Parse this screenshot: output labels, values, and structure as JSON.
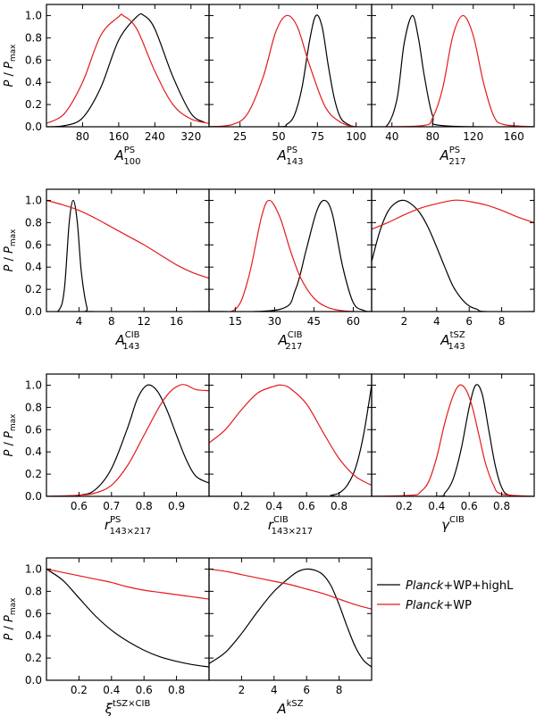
{
  "ylabel": "P / P_max",
  "yticks": [
    "0.0",
    "0.2",
    "0.4",
    "0.6",
    "0.8",
    "1.0"
  ],
  "legend": [
    {
      "name": "Planck+WP+highL",
      "italic": "Planck",
      "rest": "+WP+highL",
      "color": "#000000"
    },
    {
      "name": "Planck+WP",
      "italic": "Planck",
      "rest": "+WP",
      "color": "#e41a1c"
    }
  ],
  "chart_data": [
    {
      "type": "line",
      "xlabel": {
        "base": "A",
        "sup": "PS",
        "sub": "100"
      },
      "xlim": [
        0,
        360
      ],
      "ylim": [
        0,
        1.1
      ],
      "xticks": [
        80,
        160,
        240,
        320
      ],
      "series": [
        {
          "name": "Planck+WP+highL",
          "x": [
            0,
            40,
            80,
            120,
            160,
            200,
            216,
            240,
            280,
            320,
            350
          ],
          "y": [
            0.0,
            0.01,
            0.08,
            0.35,
            0.78,
            0.99,
            1.0,
            0.88,
            0.45,
            0.12,
            0.04
          ]
        },
        {
          "name": "Planck+WP",
          "x": [
            0,
            40,
            80,
            120,
            160,
            170,
            200,
            240,
            280,
            320,
            360
          ],
          "y": [
            0.03,
            0.12,
            0.4,
            0.82,
            0.99,
            1.0,
            0.88,
            0.5,
            0.2,
            0.07,
            0.03
          ]
        }
      ]
    },
    {
      "type": "line",
      "xlabel": {
        "base": "A",
        "sup": "PS",
        "sub": "143"
      },
      "xlim": [
        5,
        110
      ],
      "ylim": [
        0,
        1.1
      ],
      "xticks": [
        25,
        50,
        75,
        100
      ],
      "series": [
        {
          "name": "Planck+WP+highL",
          "x": [
            5,
            50,
            55,
            60,
            65,
            70,
            74,
            78,
            82,
            86,
            90,
            95,
            100,
            110
          ],
          "y": [
            0.0,
            0.0,
            0.02,
            0.1,
            0.35,
            0.78,
            1.0,
            0.9,
            0.55,
            0.25,
            0.08,
            0.02,
            0.0,
            0.0
          ]
        },
        {
          "name": "Planck+WP",
          "x": [
            5,
            20,
            30,
            40,
            48,
            55,
            62,
            70,
            80,
            90,
            100,
            110
          ],
          "y": [
            0.0,
            0.02,
            0.12,
            0.45,
            0.85,
            1.0,
            0.9,
            0.55,
            0.18,
            0.04,
            0.0,
            0.0
          ]
        }
      ]
    },
    {
      "type": "line",
      "xlabel": {
        "base": "A",
        "sup": "PS",
        "sub": "217"
      },
      "xlim": [
        20,
        180
      ],
      "ylim": [
        0,
        1.1
      ],
      "xticks": [
        40,
        80,
        120,
        160
      ],
      "series": [
        {
          "name": "Planck+WP+highL",
          "x": [
            20,
            35,
            45,
            52,
            60,
            66,
            72,
            80,
            90,
            180
          ],
          "y": [
            0.0,
            0.01,
            0.25,
            0.75,
            1.0,
            0.8,
            0.45,
            0.1,
            0.01,
            0.0
          ]
        },
        {
          "name": "Planck+WP",
          "x": [
            20,
            70,
            80,
            90,
            100,
            110,
            120,
            130,
            140,
            150,
            180
          ],
          "y": [
            0.0,
            0.01,
            0.08,
            0.35,
            0.82,
            1.0,
            0.82,
            0.4,
            0.1,
            0.02,
            0.0
          ]
        }
      ]
    },
    {
      "type": "line",
      "xlabel": {
        "base": "A",
        "sup": "CIB",
        "sub": "143"
      },
      "xlim": [
        0,
        20
      ],
      "ylim": [
        0,
        1.1
      ],
      "xticks": [
        4,
        8,
        12,
        16
      ],
      "series": [
        {
          "name": "Planck+WP+highL",
          "x": [
            0,
            1.5,
            2.2,
            2.8,
            3.3,
            3.8,
            4.3,
            5.0,
            5.5,
            20
          ],
          "y": [
            0.0,
            0.01,
            0.2,
            0.8,
            1.0,
            0.8,
            0.35,
            0.03,
            0.0,
            0.0
          ]
        },
        {
          "name": "Planck+WP",
          "x": [
            0,
            2,
            4,
            6,
            8,
            10,
            12,
            14,
            16,
            18,
            20
          ],
          "y": [
            1.0,
            0.96,
            0.91,
            0.84,
            0.76,
            0.68,
            0.6,
            0.51,
            0.42,
            0.35,
            0.3
          ]
        }
      ]
    },
    {
      "type": "line",
      "xlabel": {
        "base": "A",
        "sup": "CIB",
        "sub": "217"
      },
      "xlim": [
        5,
        67
      ],
      "ylim": [
        0,
        1.1
      ],
      "xticks": [
        15,
        30,
        45,
        60
      ],
      "series": [
        {
          "name": "Planck+WP+highL",
          "x": [
            5,
            32,
            38,
            42,
            46,
            49,
            52,
            56,
            60,
            64,
            67
          ],
          "y": [
            0.0,
            0.02,
            0.2,
            0.55,
            0.9,
            1.0,
            0.88,
            0.4,
            0.08,
            0.01,
            0.0
          ]
        },
        {
          "name": "Planck+WP",
          "x": [
            5,
            15,
            20,
            25,
            28,
            32,
            36,
            40,
            45,
            50,
            55,
            60,
            67
          ],
          "y": [
            0.0,
            0.02,
            0.3,
            0.85,
            1.0,
            0.85,
            0.55,
            0.3,
            0.12,
            0.04,
            0.01,
            0.0,
            0.0
          ]
        }
      ]
    },
    {
      "type": "line",
      "xlabel": {
        "base": "A",
        "sup": "tSZ",
        "sub": "143"
      },
      "xlim": [
        0,
        10
      ],
      "ylim": [
        0,
        1.1
      ],
      "xticks": [
        2,
        4,
        6,
        8
      ],
      "series": [
        {
          "name": "Planck+WP+highL",
          "x": [
            0,
            0.5,
            1,
            1.5,
            2,
            2.5,
            3,
            3.5,
            4,
            4.5,
            5,
            5.5,
            6,
            6.5,
            7,
            10
          ],
          "y": [
            0.45,
            0.72,
            0.9,
            0.98,
            1.0,
            0.96,
            0.88,
            0.75,
            0.58,
            0.4,
            0.23,
            0.12,
            0.05,
            0.02,
            0.0,
            0.0
          ]
        },
        {
          "name": "Planck+WP",
          "x": [
            0,
            1,
            2,
            3,
            4,
            5,
            5.5,
            6,
            7,
            8,
            9,
            10
          ],
          "y": [
            0.74,
            0.8,
            0.87,
            0.93,
            0.97,
            1.0,
            1.0,
            0.99,
            0.96,
            0.91,
            0.85,
            0.8
          ]
        }
      ]
    },
    {
      "type": "line",
      "xlabel": {
        "base": "r",
        "sup": "PS",
        "sub": "143×217"
      },
      "xlim": [
        0.5,
        1.0
      ],
      "ylim": [
        0,
        1.1
      ],
      "xticks": [
        0.6,
        0.7,
        0.8,
        0.9
      ],
      "series": [
        {
          "name": "Planck+WP+highL",
          "x": [
            0.5,
            0.6,
            0.65,
            0.7,
            0.75,
            0.78,
            0.81,
            0.84,
            0.87,
            0.9,
            0.93,
            0.96,
            1.0
          ],
          "y": [
            0.0,
            0.01,
            0.06,
            0.25,
            0.62,
            0.88,
            1.0,
            0.95,
            0.78,
            0.55,
            0.33,
            0.18,
            0.12
          ]
        },
        {
          "name": "Planck+WP",
          "x": [
            0.5,
            0.6,
            0.65,
            0.7,
            0.75,
            0.8,
            0.85,
            0.88,
            0.91,
            0.93,
            0.96,
            1.0
          ],
          "y": [
            0.0,
            0.01,
            0.03,
            0.1,
            0.28,
            0.55,
            0.82,
            0.94,
            1.0,
            1.0,
            0.96,
            0.95
          ]
        }
      ]
    },
    {
      "type": "line",
      "xlabel": {
        "base": "r",
        "sup": "CIB",
        "sub": "143×217"
      },
      "xlim": [
        0.0,
        1.0
      ],
      "ylim": [
        0,
        1.1
      ],
      "xticks": [
        0.2,
        0.4,
        0.6,
        0.8
      ],
      "series": [
        {
          "name": "Planck+WP+highL",
          "x": [
            0,
            0.7,
            0.75,
            0.8,
            0.85,
            0.9,
            0.95,
            1.0
          ],
          "y": [
            0.0,
            0.0,
            0.01,
            0.03,
            0.1,
            0.25,
            0.55,
            1.0
          ]
        },
        {
          "name": "Planck+WP",
          "x": [
            0,
            0.1,
            0.2,
            0.3,
            0.4,
            0.45,
            0.5,
            0.6,
            0.7,
            0.8,
            0.9,
            1.0
          ],
          "y": [
            0.48,
            0.6,
            0.78,
            0.93,
            0.99,
            1.0,
            0.97,
            0.83,
            0.58,
            0.34,
            0.18,
            0.1
          ]
        }
      ]
    },
    {
      "type": "line",
      "xlabel": {
        "base": "γ",
        "sup": "CIB",
        "sub": ""
      },
      "xlim": [
        0.0,
        1.0
      ],
      "ylim": [
        0,
        1.1
      ],
      "xticks": [
        0.2,
        0.4,
        0.6,
        0.8
      ],
      "series": [
        {
          "name": "Planck+WP+highL",
          "x": [
            0,
            0.4,
            0.45,
            0.5,
            0.55,
            0.6,
            0.64,
            0.68,
            0.72,
            0.76,
            0.8,
            0.85,
            1.0
          ],
          "y": [
            0.0,
            0.0,
            0.03,
            0.15,
            0.42,
            0.8,
            1.0,
            0.92,
            0.6,
            0.28,
            0.08,
            0.01,
            0.0
          ]
        },
        {
          "name": "Planck+WP",
          "x": [
            0,
            0.25,
            0.3,
            0.35,
            0.4,
            0.45,
            0.5,
            0.54,
            0.58,
            0.62,
            0.66,
            0.7,
            0.75,
            0.8,
            1.0
          ],
          "y": [
            0.0,
            0.01,
            0.04,
            0.13,
            0.35,
            0.66,
            0.9,
            1.0,
            0.96,
            0.8,
            0.55,
            0.3,
            0.1,
            0.02,
            0.0
          ]
        }
      ]
    },
    {
      "type": "line",
      "xlabel": {
        "base": "ξ",
        "sup": "tSZ×CIB",
        "sub": ""
      },
      "xlim": [
        0.0,
        1.0
      ],
      "ylim": [
        0,
        1.1
      ],
      "xticks": [
        0.2,
        0.4,
        0.6,
        0.8
      ],
      "series": [
        {
          "name": "Planck+WP+highL",
          "x": [
            0,
            0.1,
            0.2,
            0.3,
            0.4,
            0.5,
            0.6,
            0.7,
            0.8,
            0.9,
            1.0
          ],
          "y": [
            1.0,
            0.9,
            0.74,
            0.58,
            0.45,
            0.35,
            0.27,
            0.21,
            0.17,
            0.14,
            0.12
          ]
        },
        {
          "name": "Planck+WP",
          "x": [
            0,
            0.1,
            0.2,
            0.3,
            0.4,
            0.5,
            0.6,
            0.7,
            0.8,
            0.9,
            1.0
          ],
          "y": [
            1.0,
            0.97,
            0.94,
            0.91,
            0.88,
            0.84,
            0.81,
            0.79,
            0.77,
            0.75,
            0.73
          ]
        }
      ]
    },
    {
      "type": "line",
      "xlabel": {
        "base": "A",
        "sup": "kSZ",
        "sub": ""
      },
      "xlim": [
        0,
        10
      ],
      "ylim": [
        0,
        1.1
      ],
      "xticks": [
        2,
        4,
        6,
        8
      ],
      "series": [
        {
          "name": "Planck+WP+highL",
          "x": [
            0,
            1,
            2,
            3,
            4,
            5,
            5.5,
            6,
            6.5,
            7,
            7.5,
            8,
            8.5,
            9,
            9.5,
            10
          ],
          "y": [
            0.15,
            0.25,
            0.42,
            0.62,
            0.8,
            0.93,
            0.98,
            1.0,
            0.99,
            0.95,
            0.85,
            0.68,
            0.48,
            0.3,
            0.18,
            0.12
          ]
        },
        {
          "name": "Planck+WP",
          "x": [
            0,
            1,
            2,
            3,
            4,
            5,
            6,
            7,
            8,
            9,
            10
          ],
          "y": [
            1.0,
            0.98,
            0.95,
            0.92,
            0.89,
            0.86,
            0.82,
            0.78,
            0.73,
            0.68,
            0.64
          ]
        }
      ]
    }
  ]
}
